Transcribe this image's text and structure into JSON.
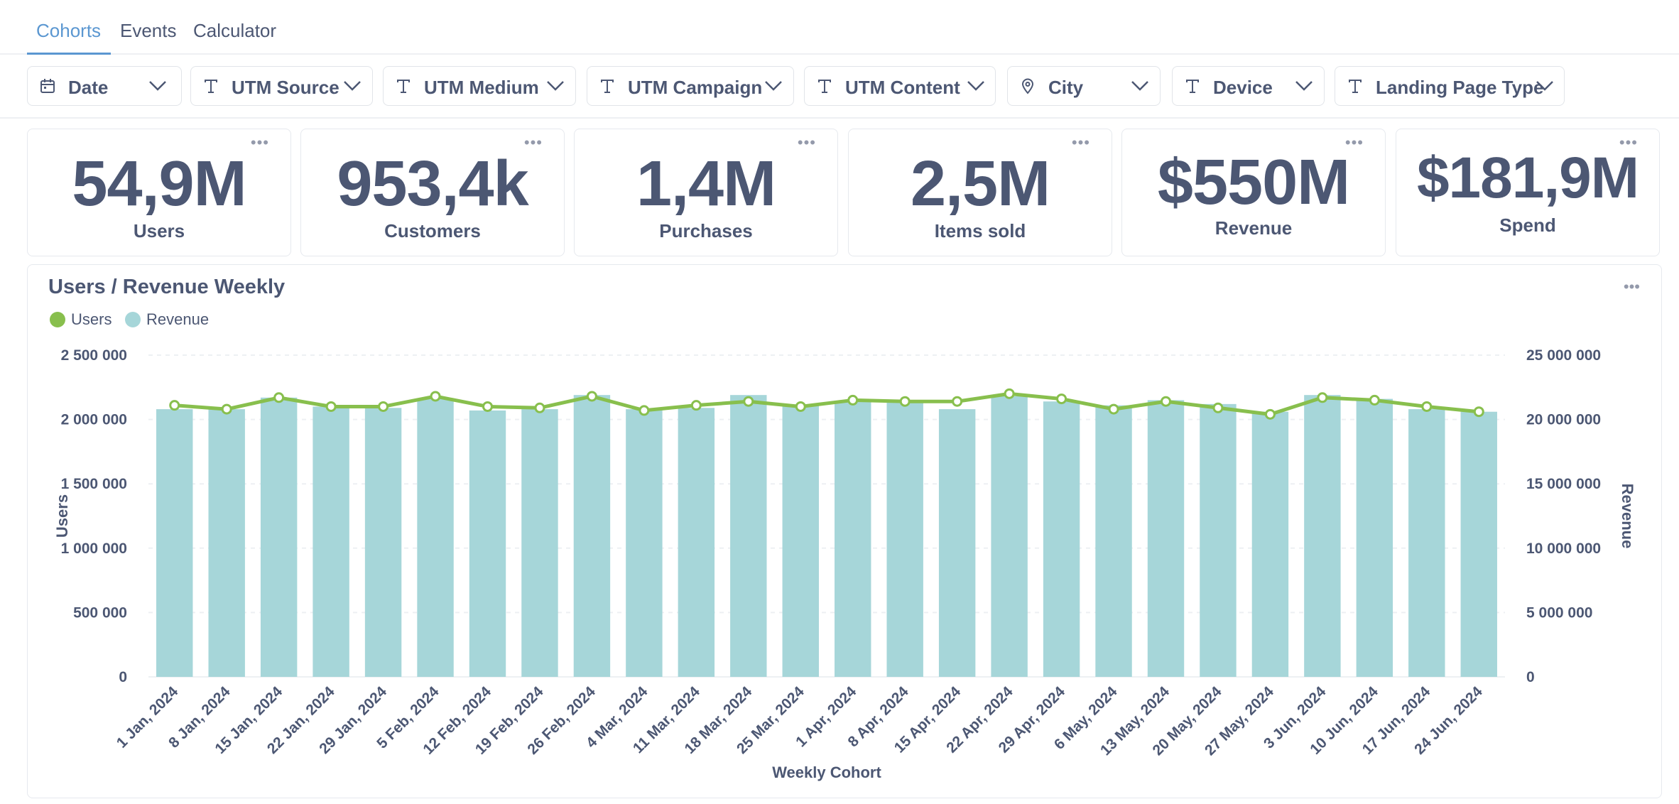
{
  "tabs": [
    {
      "label": "Cohorts",
      "active": true
    },
    {
      "label": "Events",
      "active": false
    },
    {
      "label": "Calculator",
      "active": false
    }
  ],
  "filters": [
    {
      "label": "Date",
      "icon": "calendar-icon"
    },
    {
      "label": "UTM Source",
      "icon": "text-type-icon"
    },
    {
      "label": "UTM Medium",
      "icon": "text-type-icon"
    },
    {
      "label": "UTM Campaign",
      "icon": "text-type-icon"
    },
    {
      "label": "UTM Content",
      "icon": "text-type-icon"
    },
    {
      "label": "City",
      "icon": "location-pin-icon"
    },
    {
      "label": "Device",
      "icon": "text-type-icon"
    },
    {
      "label": "Landing Page Type",
      "icon": "text-type-icon"
    }
  ],
  "scalars": [
    {
      "value": "54,9M",
      "label": "Users"
    },
    {
      "value": "953,4k",
      "label": "Customers"
    },
    {
      "value": "1,4M",
      "label": "Purchases"
    },
    {
      "value": "2,5M",
      "label": "Items sold"
    },
    {
      "value": "$550M",
      "label": "Revenue"
    },
    {
      "value": "$181,9M",
      "label": "Spend"
    }
  ],
  "chart": {
    "title": "Users / Revenue Weekly",
    "legend": [
      {
        "label": "Users",
        "color": "#88bf4d"
      },
      {
        "label": "Revenue",
        "color": "#a6d6d9"
      }
    ]
  },
  "chart_data": {
    "type": "bar",
    "title": "Users / Revenue Weekly",
    "xlabel": "Weekly Cohort",
    "ylabel": "Users",
    "y2label": "Revenue",
    "ylim": [
      0,
      2500000
    ],
    "y2lim": [
      0,
      25000000
    ],
    "yticks": [
      "0",
      "500 000",
      "1 000 000",
      "1 500 000",
      "2 000 000",
      "2 500 000"
    ],
    "y2ticks": [
      "0",
      "5 000 000",
      "10 000 000",
      "15 000 000",
      "20 000 000",
      "25 000 000"
    ],
    "grid": true,
    "legend_position": "top-left",
    "categories": [
      "1 Jan, 2024",
      "8 Jan, 2024",
      "15 Jan, 2024",
      "22 Jan, 2024",
      "29 Jan, 2024",
      "5 Feb, 2024",
      "12 Feb, 2024",
      "19 Feb, 2024",
      "26 Feb, 2024",
      "4 Mar, 2024",
      "11 Mar, 2024",
      "18 Mar, 2024",
      "25 Mar, 2024",
      "1 Apr, 2024",
      "8 Apr, 2024",
      "15 Apr, 2024",
      "22 Apr, 2024",
      "29 Apr, 2024",
      "6 May, 2024",
      "13 May, 2024",
      "20 May, 2024",
      "27 May, 2024",
      "3 Jun, 2024",
      "10 Jun, 2024",
      "17 Jun, 2024",
      "24 Jun, 2024"
    ],
    "series": [
      {
        "name": "Users",
        "type": "line",
        "axis": "left",
        "color": "#88bf4d",
        "values": [
          2110000,
          2080000,
          2170000,
          2100000,
          2100000,
          2180000,
          2100000,
          2090000,
          2180000,
          2070000,
          2110000,
          2140000,
          2100000,
          2150000,
          2140000,
          2140000,
          2200000,
          2160000,
          2080000,
          2140000,
          2090000,
          2040000,
          2170000,
          2150000,
          2100000,
          2060000
        ]
      },
      {
        "name": "Revenue",
        "type": "bar",
        "axis": "right",
        "color": "#a6d6d9",
        "values": [
          20800000,
          20800000,
          21700000,
          21000000,
          20900000,
          21600000,
          20700000,
          20800000,
          21900000,
          20800000,
          20900000,
          21900000,
          21100000,
          21400000,
          21400000,
          20800000,
          21800000,
          21400000,
          21100000,
          21500000,
          21200000,
          20600000,
          21900000,
          21600000,
          20800000,
          20600000
        ]
      }
    ]
  }
}
